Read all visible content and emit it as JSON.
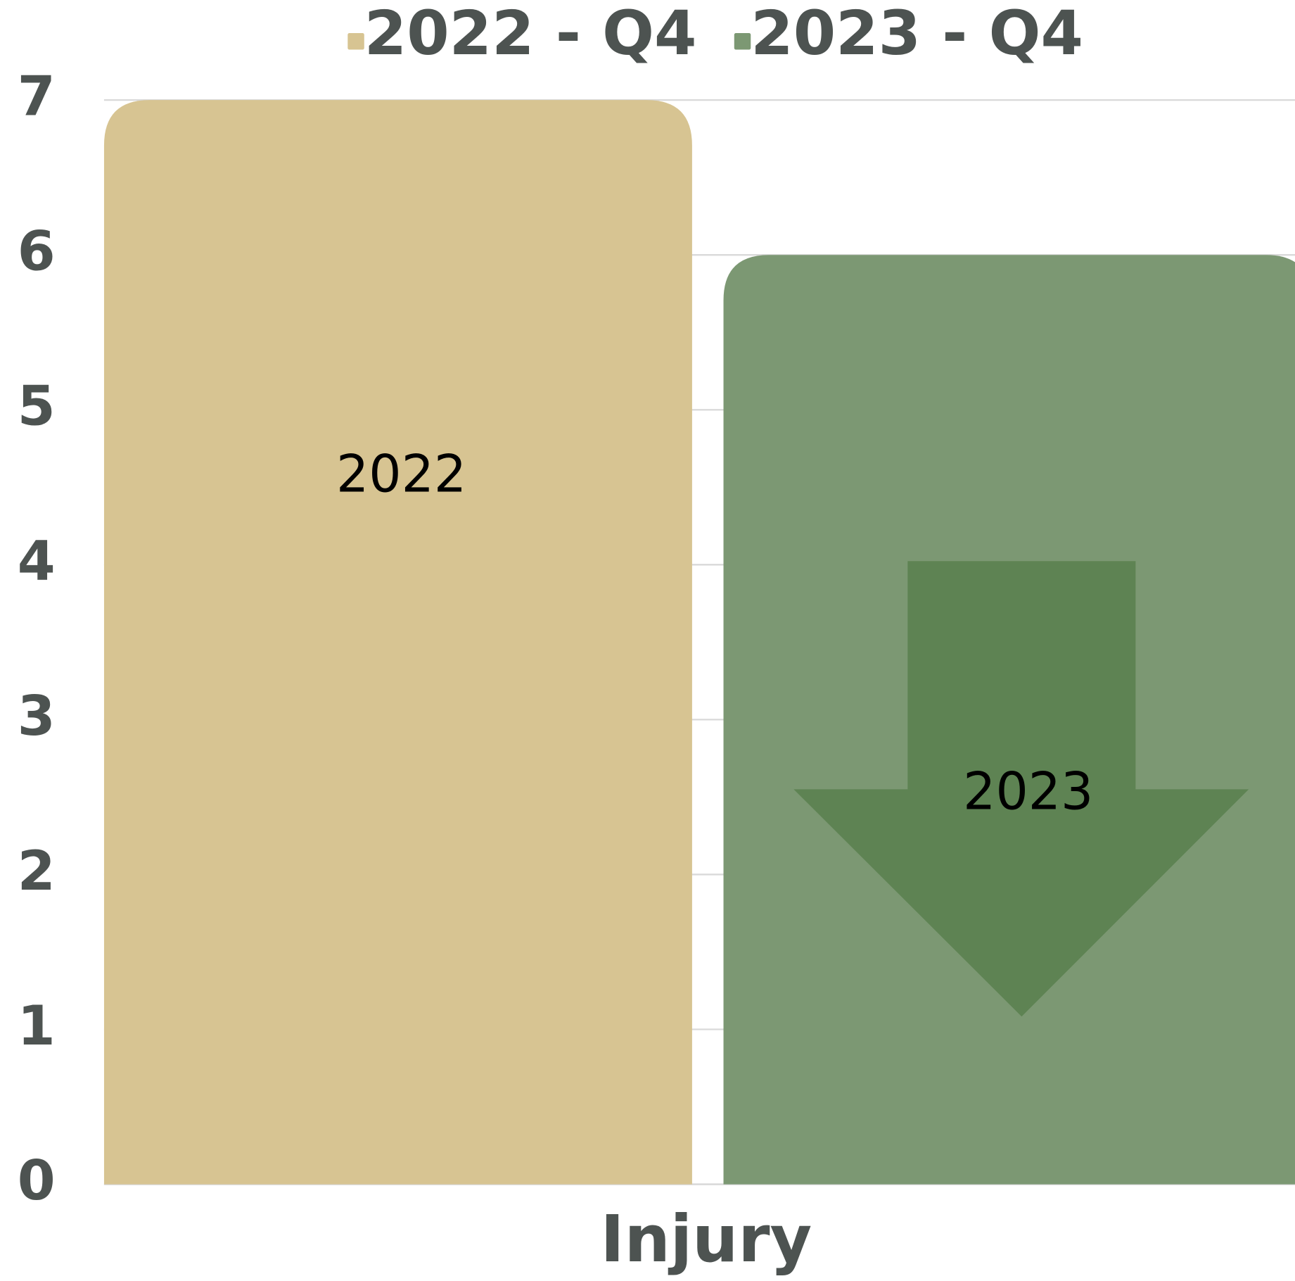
{
  "chart_data": {
    "type": "bar",
    "categories": [
      "Injury"
    ],
    "series": [
      {
        "name": "2022 - Q4",
        "color": "#d7c492",
        "values": [
          7
        ]
      },
      {
        "name": "2023 - Q4",
        "color": "#7c9873",
        "values": [
          6
        ]
      }
    ],
    "bar_labels": [
      "2022",
      "2023"
    ],
    "ylim": [
      0,
      7
    ],
    "yticks": [
      0,
      1,
      2,
      3,
      4,
      5,
      6,
      7
    ],
    "grid": true
  }
}
